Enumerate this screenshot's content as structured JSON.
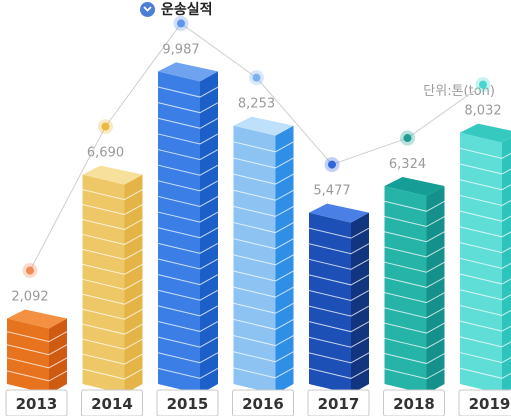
{
  "chart_data": {
    "type": "bar",
    "title": "운송실적",
    "unit_label": "단위:톤(ton)",
    "categories": [
      "2013",
      "2014",
      "2015",
      "2016",
      "2017",
      "2018",
      "2019"
    ],
    "values": [
      2092,
      6690,
      9987,
      8253,
      5477,
      6324,
      8032
    ],
    "value_labels": [
      "2,092",
      "6,690",
      "9,987",
      "8,253",
      "5,477",
      "6,324",
      "8,032"
    ],
    "ylim": [
      0,
      10000
    ],
    "colors": {
      "front": [
        "#e8731e",
        "#eec867",
        "#3b7fe6",
        "#8cc3f2",
        "#1d50b6",
        "#26b3a8",
        "#5fded7"
      ],
      "side": [
        "#cf5a12",
        "#e4b446",
        "#1d5fc8",
        "#2f8ee6",
        "#11357f",
        "#14918a",
        "#2ec4bc"
      ],
      "top": [
        "#f39042",
        "#f7df9c",
        "#6fa3f0",
        "#bfe0fa",
        "#4a80e6",
        "#159e95",
        "#36c9c0"
      ],
      "dot": [
        "#f28b54",
        "#eab93f",
        "#5f95ee",
        "#7fb1ee",
        "#2f66db",
        "#1e9c92",
        "#48d7cf"
      ]
    }
  }
}
